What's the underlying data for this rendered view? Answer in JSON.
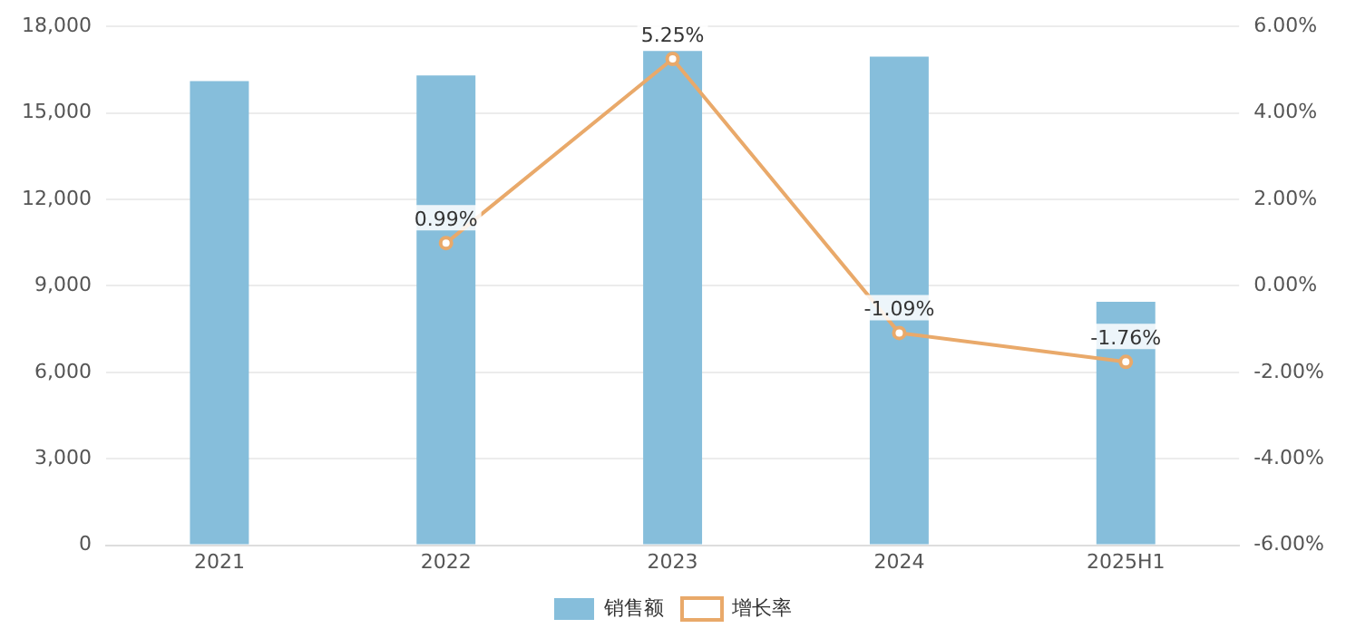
{
  "chart_data": {
    "type": "bar",
    "categories": [
      "2021",
      "2022",
      "2023",
      "2024",
      "2025H1"
    ],
    "series": [
      {
        "name": "销售额",
        "color": "#86bedb",
        "values": [
          16100,
          16300,
          17150,
          16950,
          8450
        ]
      },
      {
        "name": "增长率",
        "type": "line",
        "axis": "y2",
        "color": "#e9a96a",
        "values": [
          null,
          0.99,
          5.25,
          -1.09,
          -1.76
        ],
        "value_labels": [
          null,
          "0.99%",
          "5.25%",
          "-1.09%",
          "-1.76%"
        ]
      }
    ],
    "ylim": [
      0,
      18000
    ],
    "yticks": [
      0,
      {
        "value": 3000,
        "label": "3,000"
      },
      {
        "value": 6000,
        "label": "6,000"
      },
      {
        "value": 9000,
        "label": "9,000"
      },
      {
        "value": 12000,
        "label": "12,000"
      },
      {
        "value": 15000,
        "label": "15,000"
      },
      {
        "value": 18000,
        "label": "18,000"
      }
    ],
    "y2lim": [
      -6,
      6
    ],
    "y2ticks": [
      {
        "value": -6,
        "label": "-6.00%"
      },
      {
        "value": -4,
        "label": "-4.00%"
      },
      {
        "value": -2,
        "label": "-2.00%"
      },
      {
        "value": 0,
        "label": "0.00%"
      },
      {
        "value": 2,
        "label": "2.00%"
      },
      {
        "value": 4,
        "label": "4.00%"
      },
      {
        "value": 6,
        "label": "6.00%"
      }
    ],
    "grid": "y",
    "legend": "bottom",
    "marker": "circle",
    "line_style": "solid"
  }
}
